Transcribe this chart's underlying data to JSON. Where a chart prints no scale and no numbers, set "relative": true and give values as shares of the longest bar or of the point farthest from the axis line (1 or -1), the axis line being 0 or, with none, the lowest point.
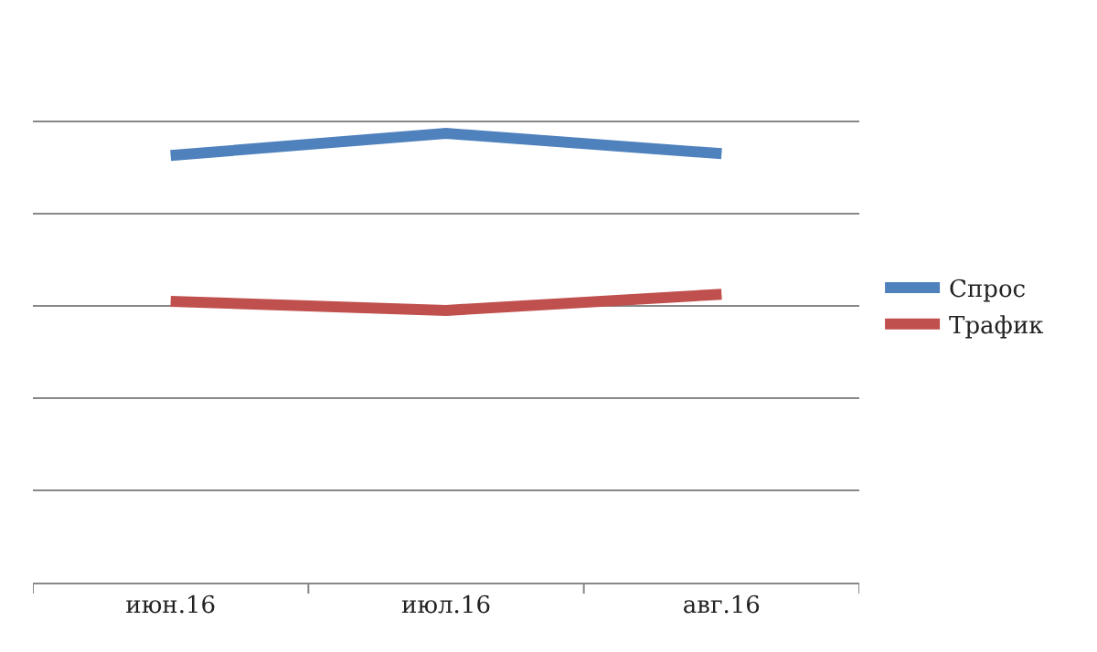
{
  "chart_data": {
    "type": "line",
    "relative": true,
    "categories": [
      "июн.16",
      "июл.16",
      "авг.16"
    ],
    "series": [
      {
        "name": "Спрос",
        "color": "#4f81bd",
        "values": [
          0.951,
          1,
          0.955
        ]
      },
      {
        "name": "Трафик",
        "color": "#c0504d",
        "values": [
          0.626,
          0.606,
          0.642
        ]
      }
    ],
    "grid": "y",
    "legend": "right",
    "marker": "none",
    "line_style": "solid"
  }
}
